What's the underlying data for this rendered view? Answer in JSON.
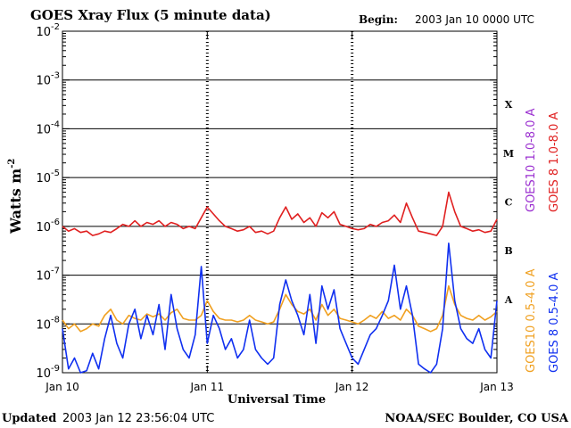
{
  "header": {
    "title": "GOES Xray Flux (5 minute data)",
    "begin_label": "Begin:",
    "begin_value": "2003 Jan 10 0000 UTC"
  },
  "footer": {
    "updated_label": "Updated",
    "updated_value": "2003 Jan 12 23:56:04 UTC",
    "credit": "NOAA/SEC Boulder, CO USA"
  },
  "chart_data": {
    "type": "line",
    "title": "GOES Xray Flux (5 minute data)",
    "xlabel": "Universal Time",
    "ylabel": "Watts m",
    "ylabel_exponent": "-2",
    "yscale": "log",
    "ylim": [
      1e-09,
      0.01
    ],
    "xlim": [
      0,
      72
    ],
    "x_unit": "hours since 2003 Jan 10 0000 UTC",
    "x_ticks": [
      {
        "x": 0,
        "label": "Jan 10"
      },
      {
        "x": 24,
        "label": "Jan 11"
      },
      {
        "x": 48,
        "label": "Jan 12"
      },
      {
        "x": 72,
        "label": "Jan 13"
      }
    ],
    "y_ticks": [
      {
        "exp": -2,
        "base": "10",
        "sup": "-2"
      },
      {
        "exp": -3,
        "base": "10",
        "sup": "-3"
      },
      {
        "exp": -4,
        "base": "10",
        "sup": "-4"
      },
      {
        "exp": -5,
        "base": "10",
        "sup": "-5"
      },
      {
        "exp": -6,
        "base": "10",
        "sup": "-6"
      },
      {
        "exp": -7,
        "base": "10",
        "sup": "-7"
      },
      {
        "exp": -8,
        "base": "10",
        "sup": "-8"
      },
      {
        "exp": -9,
        "base": "10",
        "sup": "-9"
      }
    ],
    "flare_classes": [
      {
        "label": "X",
        "exp": -3.5
      },
      {
        "label": "M",
        "exp": -4.5
      },
      {
        "label": "C",
        "exp": -5.5
      },
      {
        "label": "B",
        "exp": -6.5
      },
      {
        "label": "A",
        "exp": -7.5
      }
    ],
    "grid": "horizontal lines at each decade from 1e-3 to 1e-8",
    "legend": [
      {
        "text": "GOES10 1.0-8.0 A",
        "color": "#9b30d0"
      },
      {
        "text": "GOES 8 1.0-8.0 A",
        "color": "#e02020"
      },
      {
        "text": "GOES10 0.5-4.0 A",
        "color": "#f0a020"
      },
      {
        "text": "GOES 8 0.5-4.0 A",
        "color": "#1030f0"
      }
    ],
    "series": [
      {
        "name": "GOES 8 1.0-8.0 A",
        "color": "#e02020",
        "x": [
          0,
          1,
          2,
          3,
          4,
          5,
          6,
          7,
          8,
          9,
          10,
          11,
          12,
          13,
          14,
          15,
          16,
          17,
          18,
          19,
          20,
          21,
          22,
          23,
          24,
          25,
          26,
          27,
          28,
          29,
          30,
          31,
          32,
          33,
          34,
          35,
          36,
          37,
          38,
          39,
          40,
          41,
          42,
          43,
          44,
          45,
          46,
          47,
          48,
          49,
          50,
          51,
          52,
          53,
          54,
          55,
          56,
          57,
          58,
          59,
          60,
          61,
          62,
          63,
          64,
          65,
          66,
          67,
          68,
          69,
          70,
          71,
          72
        ],
        "values": [
          1e-06,
          8e-07,
          9e-07,
          7.5e-07,
          8e-07,
          6.5e-07,
          7e-07,
          8e-07,
          7.5e-07,
          9e-07,
          1.1e-06,
          1e-06,
          1.3e-06,
          1e-06,
          1.2e-06,
          1.1e-06,
          1.3e-06,
          1e-06,
          1.2e-06,
          1.1e-06,
          9e-07,
          1e-06,
          9e-07,
          1.5e-06,
          2.5e-06,
          1.8e-06,
          1.3e-06,
          1e-06,
          9e-07,
          8e-07,
          8.5e-07,
          1e-06,
          7.5e-07,
          8e-07,
          7e-07,
          8e-07,
          1.5e-06,
          2.5e-06,
          1.4e-06,
          1.8e-06,
          1.2e-06,
          1.5e-06,
          1e-06,
          1.9e-06,
          1.5e-06,
          2e-06,
          1.1e-06,
          1e-06,
          9e-07,
          8.5e-07,
          9e-07,
          1.1e-06,
          1e-06,
          1.2e-06,
          1.3e-06,
          1.7e-06,
          1.2e-06,
          3e-06,
          1.5e-06,
          8e-07,
          7.5e-07,
          7e-07,
          6.5e-07,
          1e-06,
          5e-06,
          2e-06,
          1e-06,
          9e-07,
          8e-07,
          8.5e-07,
          7.5e-07,
          8e-07,
          1.4e-06
        ]
      },
      {
        "name": "GOES10 0.5-4.0 A",
        "color": "#f0a020",
        "x": [
          0,
          1,
          2,
          3,
          4,
          5,
          6,
          7,
          8,
          9,
          10,
          11,
          12,
          13,
          14,
          15,
          16,
          17,
          18,
          19,
          20,
          21,
          22,
          23,
          24,
          25,
          26,
          27,
          28,
          29,
          30,
          31,
          32,
          33,
          34,
          35,
          36,
          37,
          38,
          39,
          40,
          41,
          42,
          43,
          44,
          45,
          46,
          47,
          48,
          49,
          50,
          51,
          52,
          53,
          54,
          55,
          56,
          57,
          58,
          59,
          60,
          61,
          62,
          63,
          64,
          65,
          66,
          67,
          68,
          69,
          70,
          71,
          72
        ],
        "values": [
          1.2e-08,
          8e-09,
          1e-08,
          7e-09,
          8e-09,
          1e-08,
          9e-09,
          1.5e-08,
          2e-08,
          1.2e-08,
          1e-08,
          1.5e-08,
          1.3e-08,
          1.2e-08,
          1.6e-08,
          1.4e-08,
          1.6e-08,
          1.2e-08,
          1.7e-08,
          2e-08,
          1.3e-08,
          1.2e-08,
          1.2e-08,
          1.5e-08,
          3e-08,
          1.8e-08,
          1.3e-08,
          1.2e-08,
          1.2e-08,
          1.1e-08,
          1.2e-08,
          1.5e-08,
          1.2e-08,
          1.1e-08,
          1e-08,
          1.1e-08,
          2e-08,
          4e-08,
          2.5e-08,
          1.8e-08,
          1.6e-08,
          2e-08,
          1.2e-08,
          2.5e-08,
          1.5e-08,
          2e-08,
          1.3e-08,
          1.2e-08,
          1.1e-08,
          1e-08,
          1.2e-08,
          1.5e-08,
          1.3e-08,
          1.8e-08,
          1.3e-08,
          1.5e-08,
          1.2e-08,
          2e-08,
          1.5e-08,
          9e-09,
          8e-09,
          7e-09,
          8e-09,
          1.5e-08,
          6e-08,
          2.5e-08,
          1.5e-08,
          1.3e-08,
          1.2e-08,
          1.5e-08,
          1.2e-08,
          1.4e-08,
          1.8e-08
        ]
      },
      {
        "name": "GOES 8 0.5-4.0 A",
        "color": "#1030f0",
        "x": [
          0,
          1,
          2,
          3,
          4,
          5,
          6,
          7,
          8,
          9,
          10,
          11,
          12,
          13,
          14,
          15,
          16,
          17,
          18,
          19,
          20,
          21,
          22,
          23,
          24,
          25,
          26,
          27,
          28,
          29,
          30,
          31,
          32,
          33,
          34,
          35,
          36,
          37,
          38,
          39,
          40,
          41,
          42,
          43,
          44,
          45,
          46,
          47,
          48,
          49,
          50,
          51,
          52,
          53,
          54,
          55,
          56,
          57,
          58,
          59,
          60,
          61,
          62,
          63,
          64,
          65,
          66,
          67,
          68,
          69,
          70,
          71,
          72
        ],
        "values": [
          8e-09,
          1.2e-09,
          2e-09,
          1e-09,
          1.1e-09,
          2.5e-09,
          1.2e-09,
          5e-09,
          1.5e-08,
          4e-09,
          2e-09,
          1e-08,
          2e-08,
          5e-09,
          1.5e-08,
          6e-09,
          2.5e-08,
          3e-09,
          4e-08,
          8e-09,
          3e-09,
          2e-09,
          6e-09,
          1.5e-07,
          4e-09,
          1.5e-08,
          8e-09,
          3e-09,
          5e-09,
          2e-09,
          3e-09,
          1.2e-08,
          3e-09,
          2e-09,
          1.5e-09,
          2e-09,
          2.5e-08,
          8e-08,
          3e-08,
          1.5e-08,
          6e-09,
          4e-08,
          4e-09,
          6e-08,
          2e-08,
          5e-08,
          8e-09,
          4e-09,
          2e-09,
          1.5e-09,
          3e-09,
          6e-09,
          8e-09,
          1.5e-08,
          3e-08,
          1.6e-07,
          2e-08,
          6e-08,
          1.5e-08,
          1.5e-09,
          1.2e-09,
          1e-09,
          1.5e-09,
          8e-09,
          4.5e-07,
          3e-08,
          8e-09,
          5e-09,
          4e-09,
          8e-09,
          3e-09,
          2e-09,
          3e-08
        ]
      }
    ]
  }
}
